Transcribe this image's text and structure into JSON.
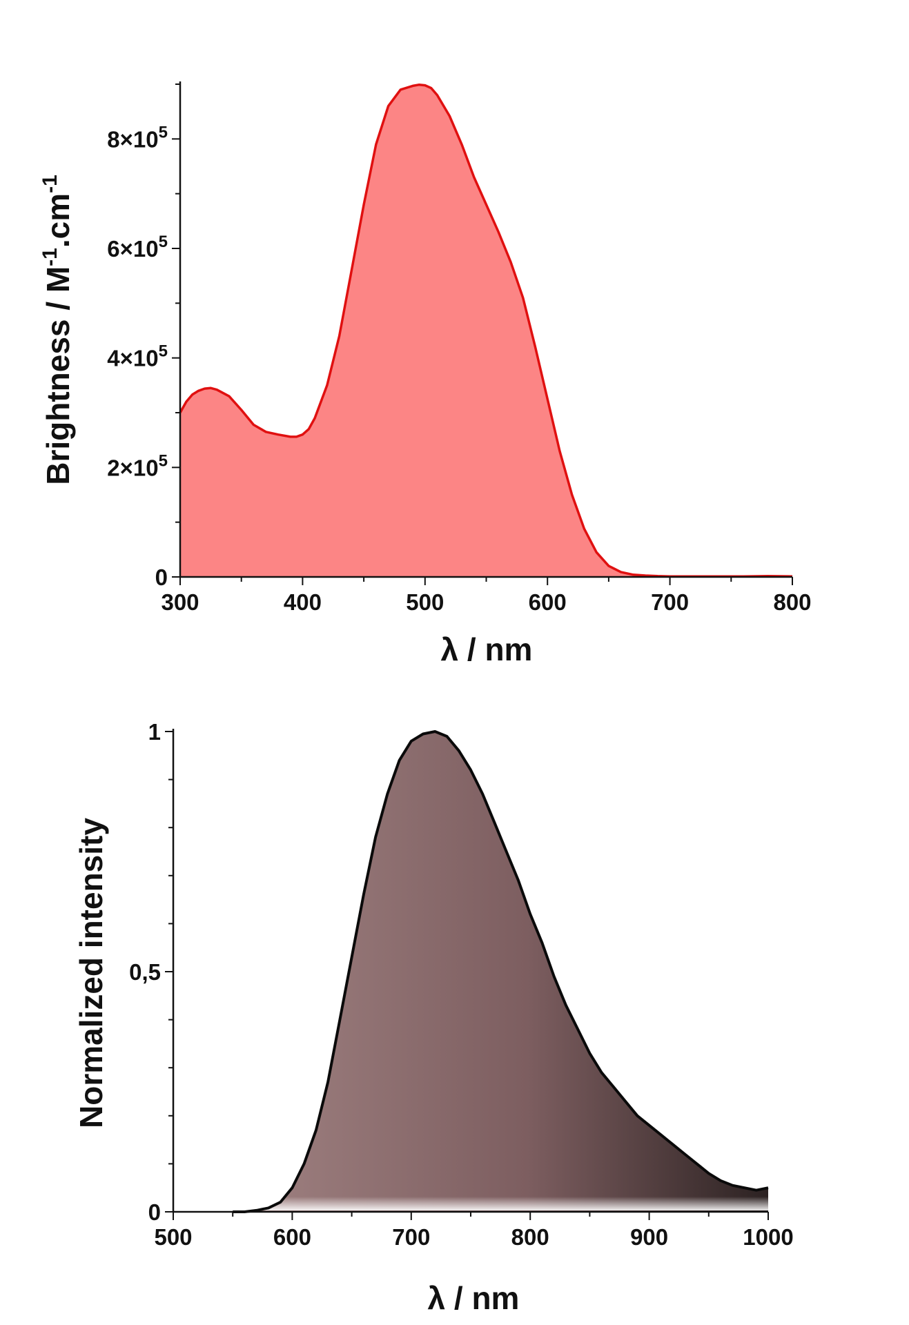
{
  "chart_data": [
    {
      "type": "area",
      "title": "",
      "xlabel": "λ / nm",
      "ylabel": "Brightness / M-1.cm-1",
      "ylabel_parts": {
        "main": "Brightness / M",
        "sup1": "-1",
        "mid": ".cm",
        "sup2": "-1"
      },
      "xlim": [
        300,
        800
      ],
      "ylim": [
        0,
        900000
      ],
      "x_ticks": [
        300,
        400,
        500,
        600,
        700,
        800
      ],
      "x_tick_labels": [
        "300",
        "400",
        "500",
        "600",
        "700",
        "800"
      ],
      "y_ticks": [
        0,
        200000,
        400000,
        600000,
        800000
      ],
      "y_tick_labels": [
        {
          "base": "0",
          "exp": ""
        },
        {
          "base": "2×10",
          "exp": "5"
        },
        {
          "base": "4×10",
          "exp": "5"
        },
        {
          "base": "6×10",
          "exp": "5"
        },
        {
          "base": "8×10",
          "exp": "5"
        }
      ],
      "grid": false,
      "series": [
        {
          "line_color": "#e01010",
          "fill_color": "#fc8585",
          "x": [
            300,
            305,
            310,
            315,
            320,
            325,
            330,
            340,
            350,
            360,
            370,
            380,
            390,
            395,
            400,
            405,
            410,
            420,
            430,
            440,
            450,
            460,
            470,
            480,
            490,
            495,
            500,
            505,
            510,
            520,
            530,
            540,
            550,
            560,
            570,
            580,
            590,
            600,
            610,
            620,
            630,
            640,
            650,
            660,
            670,
            680,
            690,
            700,
            720,
            740,
            760,
            780,
            800
          ],
          "y": [
            300000,
            320000,
            333000,
            340000,
            344000,
            345000,
            342000,
            330000,
            305000,
            278000,
            265000,
            260000,
            256000,
            256000,
            260000,
            270000,
            290000,
            350000,
            440000,
            560000,
            680000,
            790000,
            860000,
            890000,
            897000,
            899000,
            898000,
            893000,
            880000,
            842000,
            790000,
            730000,
            680000,
            630000,
            575000,
            510000,
            420000,
            325000,
            230000,
            150000,
            88000,
            45000,
            20000,
            9000,
            4000,
            2500,
            1500,
            1000,
            1000,
            1000,
            1000,
            1500,
            1000
          ]
        }
      ]
    },
    {
      "type": "area",
      "title": "",
      "xlabel": "λ / nm",
      "ylabel": "Normalized intensity",
      "xlim": [
        500,
        1000
      ],
      "ylim": [
        0,
        1
      ],
      "x_ticks": [
        500,
        600,
        700,
        800,
        900,
        1000
      ],
      "x_tick_labels": [
        "500",
        "600",
        "700",
        "800",
        "900",
        "1000"
      ],
      "y_ticks": [
        0,
        0.5,
        1
      ],
      "y_tick_labels": [
        "0",
        "0,5",
        "1"
      ],
      "grid": false,
      "series": [
        {
          "line_color": "#0a0a0a",
          "fill_colors": [
            "#a08282",
            "#7d5e60",
            "#2c2222"
          ],
          "x": [
            550,
            560,
            570,
            580,
            590,
            600,
            610,
            620,
            630,
            640,
            650,
            660,
            670,
            680,
            690,
            700,
            710,
            720,
            730,
            740,
            750,
            760,
            770,
            780,
            790,
            800,
            810,
            820,
            830,
            840,
            850,
            860,
            870,
            880,
            890,
            900,
            910,
            920,
            930,
            940,
            950,
            960,
            970,
            980,
            990,
            1000
          ],
          "y": [
            0.0,
            0.0,
            0.003,
            0.008,
            0.02,
            0.05,
            0.1,
            0.17,
            0.27,
            0.4,
            0.53,
            0.66,
            0.78,
            0.87,
            0.94,
            0.98,
            0.995,
            1.0,
            0.99,
            0.96,
            0.92,
            0.87,
            0.81,
            0.75,
            0.69,
            0.62,
            0.56,
            0.49,
            0.43,
            0.38,
            0.33,
            0.29,
            0.26,
            0.23,
            0.2,
            0.18,
            0.16,
            0.14,
            0.12,
            0.1,
            0.08,
            0.065,
            0.055,
            0.05,
            0.045,
            0.05
          ]
        }
      ]
    }
  ]
}
